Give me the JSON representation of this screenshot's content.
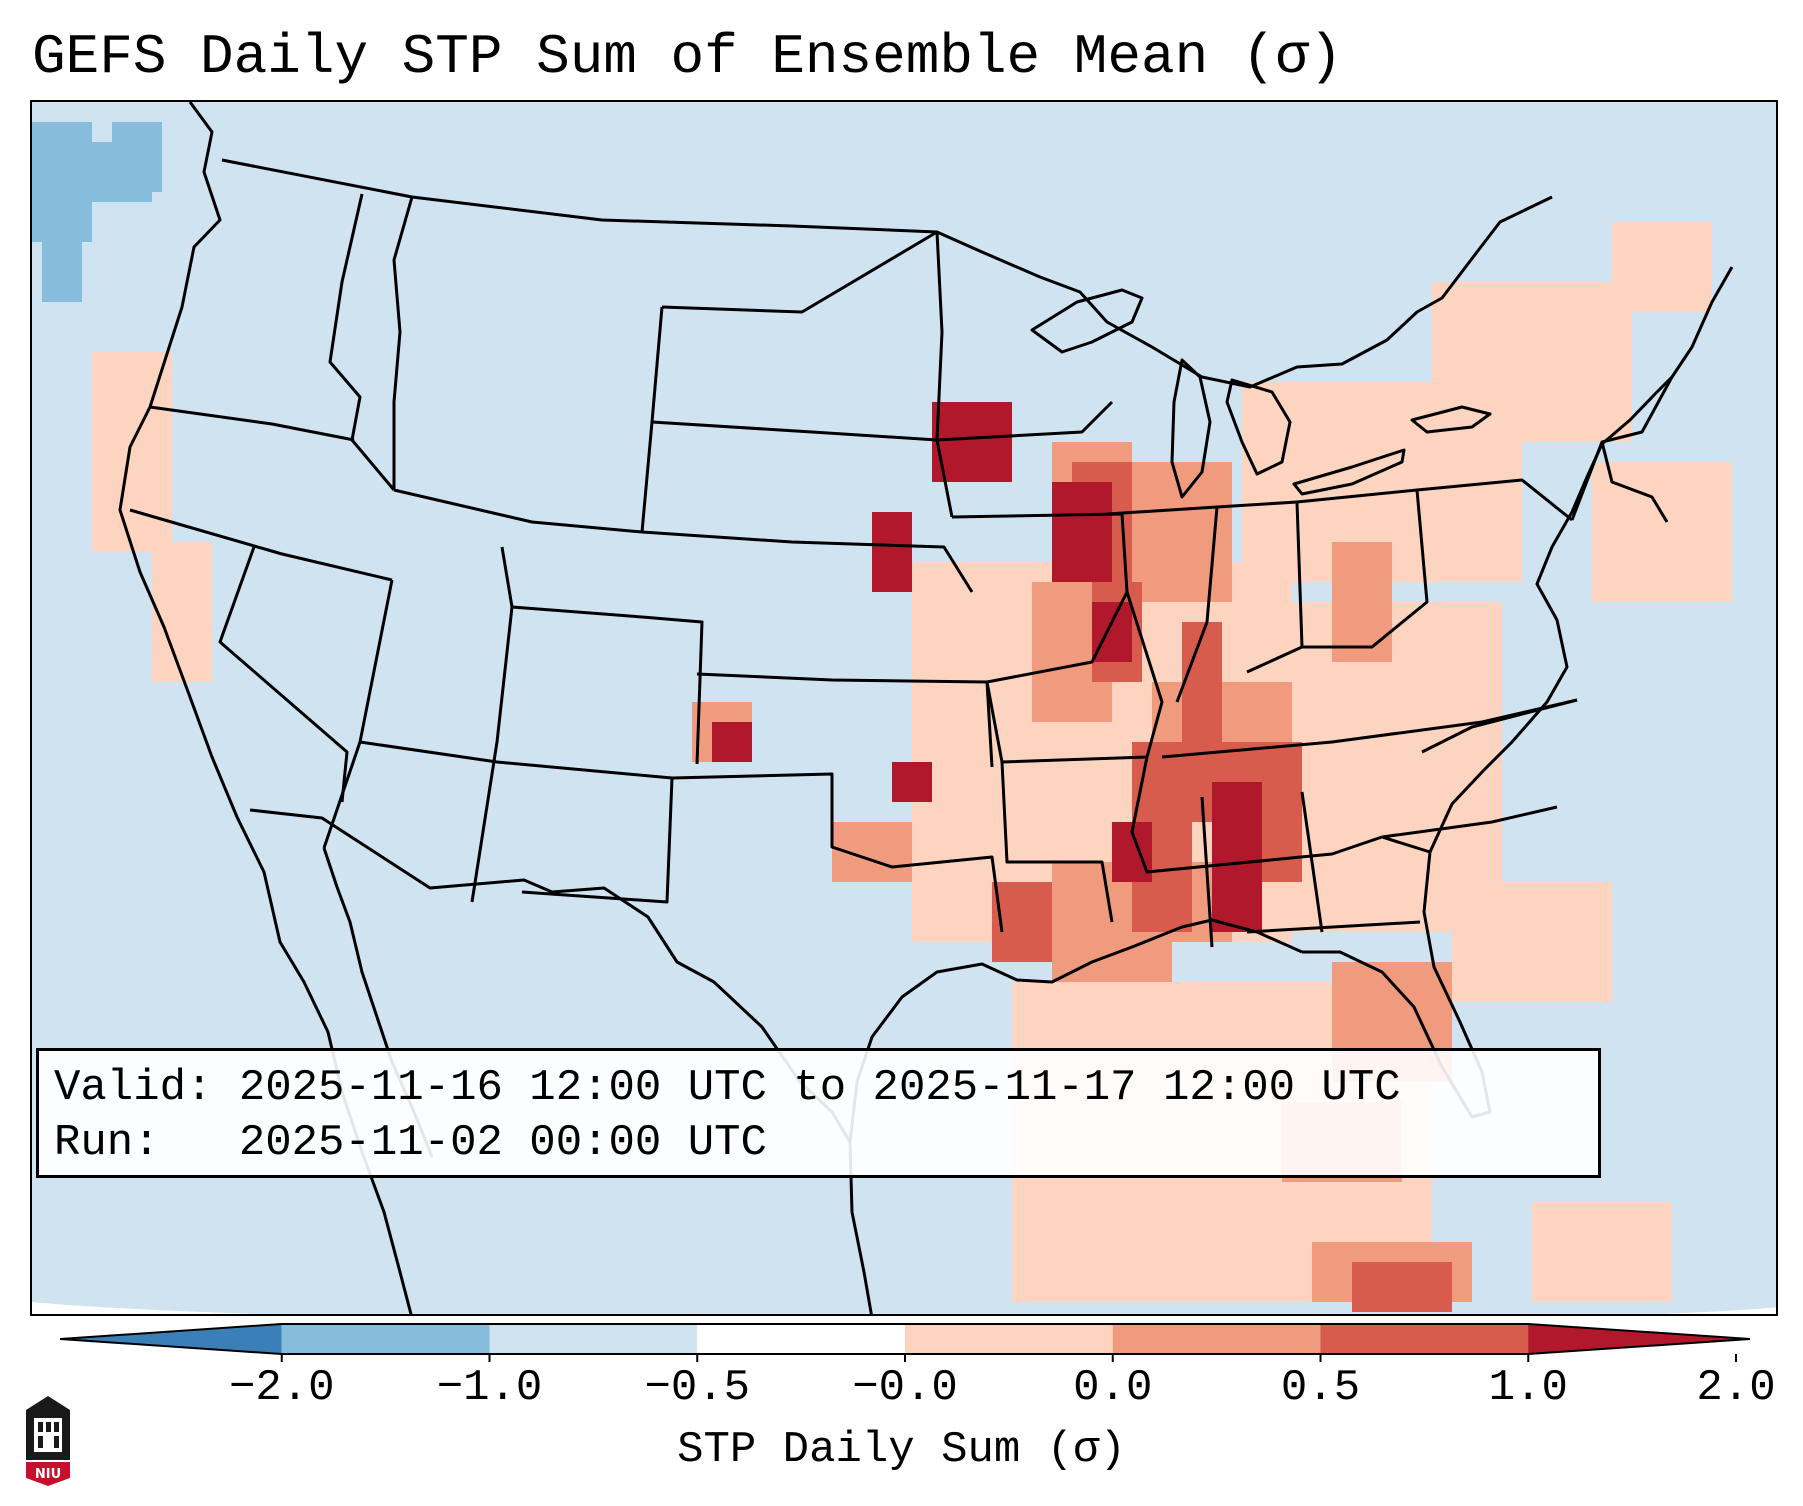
{
  "title": "GEFS Daily STP Sum of Ensemble Mean (σ)",
  "info": {
    "valid_label": "Valid:",
    "valid_text": "2025-11-16 12:00 UTC to 2025-11-17 12:00 UTC",
    "run_label": "Run:",
    "run_text": "2025-11-02 00:00 UTC"
  },
  "colorbar": {
    "label": "STP Daily Sum (σ)",
    "ticks": [
      "−2.0",
      "−1.0",
      "−0.5",
      "−0.0",
      "0.0",
      "0.5",
      "1.0",
      "2.0"
    ],
    "colors": [
      "#3a7fb8",
      "#86bcdc",
      "#cfe3f0",
      "#ffffff",
      "#fdd4c0",
      "#f09b7d",
      "#d75c4d",
      "#b2182b"
    ],
    "extend": "both"
  },
  "logo": {
    "text": "NIU"
  },
  "map_colors": {
    "background": "#cfe3f0",
    "pale_blue": "#cfe3f0",
    "light_blue": "#86bcdc",
    "light_red": "#fdd4c0",
    "mid_red": "#f09b7d",
    "red": "#d75c4d",
    "dark_red": "#b2182b"
  },
  "map_features": [
    "coastlines",
    "country-borders",
    "state-borders",
    "great-lakes"
  ]
}
